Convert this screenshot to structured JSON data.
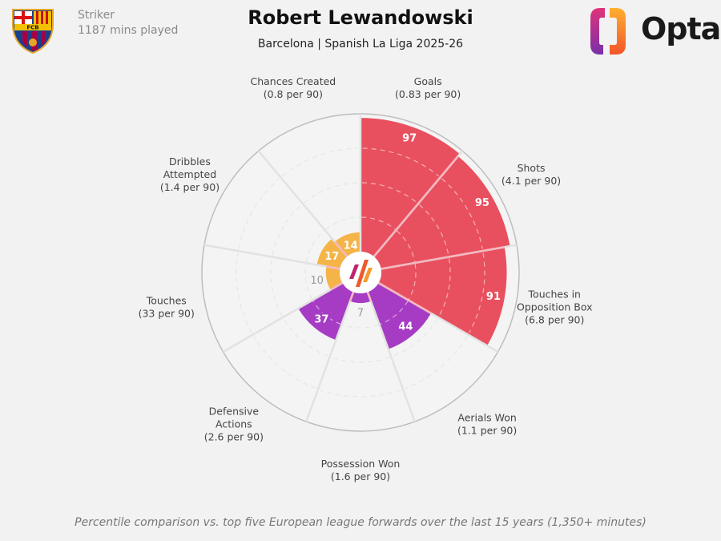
{
  "header": {
    "position": "Striker",
    "minutes": "1187 mins played",
    "title": "Robert Lewandowski",
    "subtitle": "Barcelona | Spanish La Liga 2025-26",
    "brand": "Opta",
    "club_crest_text": "FCB"
  },
  "footnote": "Percentile comparison vs. top five European league forwards over the last 15 years (1,350+ minutes)",
  "chart_data": {
    "type": "polar-bar",
    "scale": [
      0,
      100
    ],
    "gridlines": [
      25,
      50,
      75
    ],
    "categories": [
      {
        "label": [
          "Goals",
          "(0.83 per 90)"
        ],
        "value": 97,
        "color": "#e9505f"
      },
      {
        "label": [
          "Shots",
          "(4.1 per 90)"
        ],
        "value": 95,
        "color": "#e9505f"
      },
      {
        "label": [
          "Touches in",
          "Opposition Box",
          "(6.8 per 90)"
        ],
        "value": 91,
        "color": "#e9505f"
      },
      {
        "label": [
          "Aerials Won",
          "(1.1 per 90)"
        ],
        "value": 44,
        "color": "#a63cc4"
      },
      {
        "label": [
          "Possession Won",
          "(1.6 per 90)"
        ],
        "value": 7,
        "color": "#a63cc4"
      },
      {
        "label": [
          "Defensive",
          "Actions",
          "(2.6 per 90)"
        ],
        "value": 37,
        "color": "#a63cc4"
      },
      {
        "label": [
          "Touches",
          "(33 per 90)"
        ],
        "value": 10,
        "color": "#f5b447"
      },
      {
        "label": [
          "Dribbles",
          "Attempted",
          "(1.4 per 90)"
        ],
        "value": 17,
        "color": "#f5b447"
      },
      {
        "label": [
          "Chances Created",
          "(0.8 per 90)"
        ],
        "value": 14,
        "color": "#f5b447"
      }
    ]
  }
}
